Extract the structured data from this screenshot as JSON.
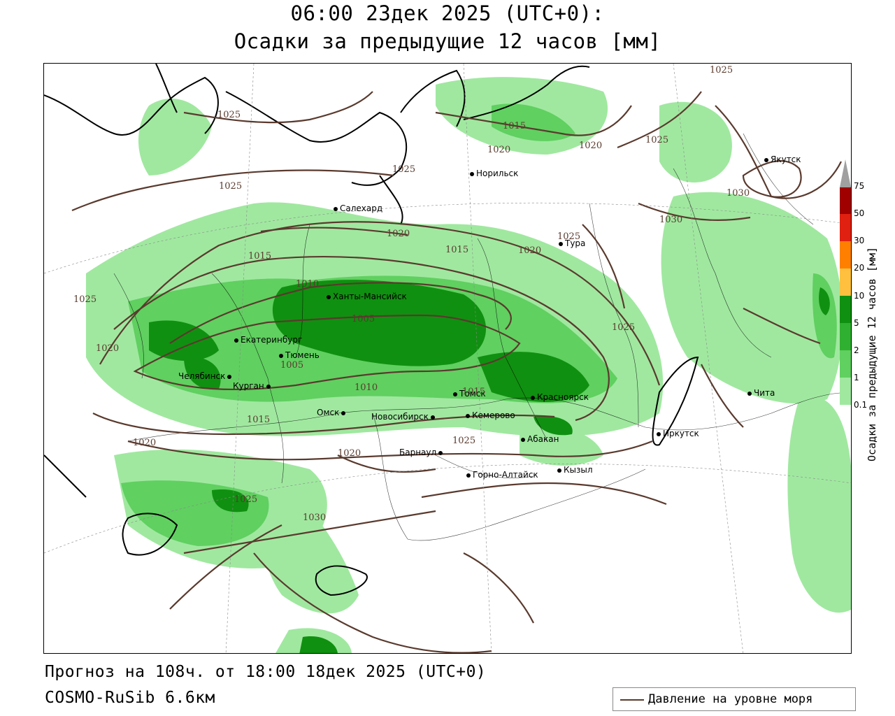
{
  "header": {
    "line1": "06:00 23дек 2025 (UTC+0):",
    "line2": "Осадки за предыдущие 12 часов [мм]"
  },
  "footer": {
    "forecast": "Прогноз на 108ч. от 18:00 18дек 2025 (UTC+0)",
    "model": "COSMO-RuSib 6.6км"
  },
  "legend": {
    "pressure_label": "Давление на уровне моря",
    "pressure_color": "#5a3a2e"
  },
  "colorbar": {
    "title": "Осадки за предыдущие 12 часов [мм]",
    "levels": [
      "75",
      "50",
      "30",
      "20",
      "10",
      "5",
      "2",
      "1",
      "0.1"
    ],
    "colors": [
      "#a00000",
      "#e02010",
      "#ff8000",
      "#ffc040",
      "#109010",
      "#30b030",
      "#60d060",
      "#a0e8a0",
      "#ffffff"
    ]
  },
  "cities": [
    {
      "name": "Салехард"
    },
    {
      "name": "Норильск"
    },
    {
      "name": "Тура"
    },
    {
      "name": "Якутск"
    },
    {
      "name": "Ханты-Мансийск"
    },
    {
      "name": "Екатеринбург"
    },
    {
      "name": "Тюмень"
    },
    {
      "name": "Челябинск"
    },
    {
      "name": "Курган"
    },
    {
      "name": "Омск"
    },
    {
      "name": "Новосибирск"
    },
    {
      "name": "Томск"
    },
    {
      "name": "Кемерово"
    },
    {
      "name": "Красноярск"
    },
    {
      "name": "Барнаул"
    },
    {
      "name": "Абакан"
    },
    {
      "name": "Горно-Алтайск"
    },
    {
      "name": "Кызыл"
    },
    {
      "name": "Иркутск"
    },
    {
      "name": "Чита"
    }
  ],
  "isobar_labels": [
    "1025",
    "1025",
    "1015",
    "1020",
    "1020",
    "1025",
    "1025",
    "1030",
    "1025",
    "1020",
    "1015",
    "1020",
    "1025",
    "1015",
    "1010",
    "1005",
    "1025",
    "1020",
    "1005",
    "1010",
    "1015",
    "1015",
    "1020",
    "1020",
    "1025",
    "1025",
    "1030",
    "1025",
    "1030"
  ]
}
